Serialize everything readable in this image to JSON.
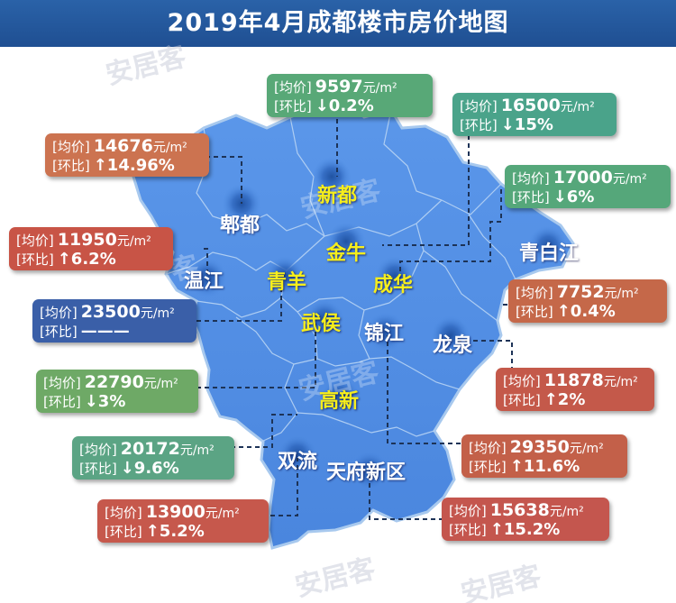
{
  "title": "2019年4月成都楼市房价地图",
  "colors": {
    "title_bar": "#2260a6",
    "map_fill": "#4f8ee4",
    "map_border": "#a8c9ee",
    "district_label_white": "#ffffff",
    "district_label_yellow": "#f6ee1c",
    "watermark": "#c7cbd6"
  },
  "watermark": "安居客",
  "labels": {
    "avg_label": "[均价]",
    "change_label": "[环比]",
    "unit": "元/m²"
  },
  "districts": {
    "pidu": "郫都",
    "xindu": "新都",
    "jinniu": "金牛",
    "wenjiang": "温江",
    "qingyang": "青羊",
    "chenghua": "成华",
    "qingbaijiang": "青白江",
    "wuhou": "武侯",
    "jinjiang": "锦江",
    "longquan": "龙泉",
    "gaoxin": "高新",
    "shuangliu": "双流",
    "tianfu": "天府新区"
  },
  "prices": [
    {
      "district": "新都",
      "price": "9597",
      "change": "↓0.2%",
      "color": "#58a877"
    },
    {
      "district": "新都-东北",
      "price": "16500",
      "change": "↓15%",
      "color": "#4aa38a"
    },
    {
      "district": "郫都",
      "price": "14676",
      "change": "↑14.96%",
      "color": "#cc7350"
    },
    {
      "district": "青白江",
      "price": "17000",
      "change": "↓6%",
      "color": "#55a77a"
    },
    {
      "district": "温江",
      "price": "11950",
      "change": "↑6.2%",
      "color": "#c85446"
    },
    {
      "district": "龙泉",
      "price": "7752",
      "change": "↑0.4%",
      "color": "#c56849"
    },
    {
      "district": "青羊",
      "price": "23500",
      "change": "———",
      "color": "#3a5fa8"
    },
    {
      "district": "武侯",
      "price": "22790",
      "change": "↓3%",
      "color": "#6ea966"
    },
    {
      "district": "锦江",
      "price": "11878",
      "change": "↑2%",
      "color": "#c4594a"
    },
    {
      "district": "双流",
      "price": "20172",
      "change": "↓9.6%",
      "color": "#5ba484"
    },
    {
      "district": "成华",
      "price": "29350",
      "change": "↑11.6%",
      "color": "#c36049"
    },
    {
      "district": "高新",
      "price": "13900",
      "change": "↑5.2%",
      "color": "#c6584c"
    },
    {
      "district": "天府新区",
      "price": "15638",
      "change": "↑15.2%",
      "color": "#c4564e"
    }
  ]
}
